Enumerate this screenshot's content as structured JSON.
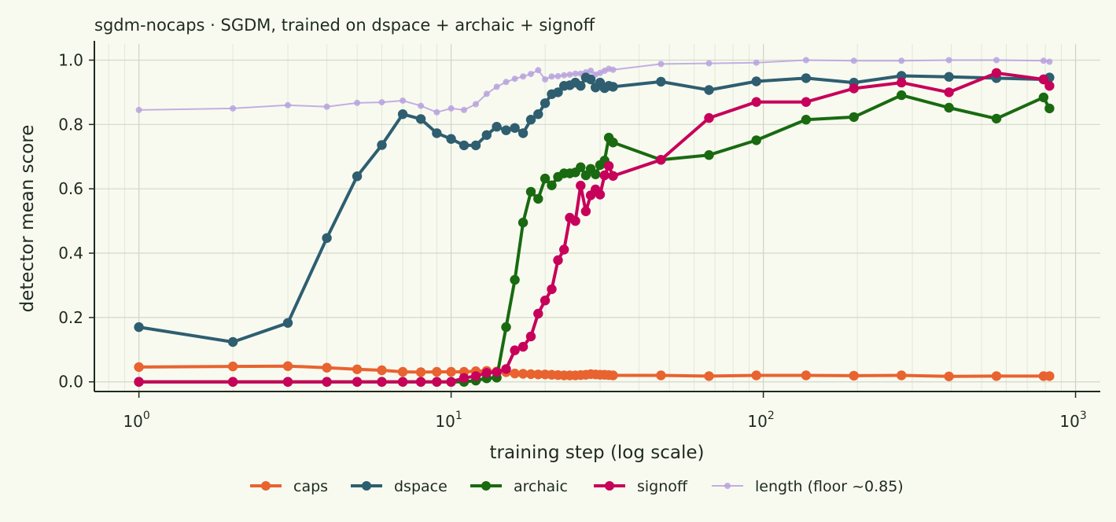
{
  "chart_data": {
    "type": "line",
    "title": "sgdm-nocaps · SGDM, trained on dspace + archaic + signoff",
    "xlabel": "training step (log scale)",
    "ylabel": "detector mean score",
    "x_scale": "log",
    "xlim": [
      0.72,
      1200
    ],
    "ylim": [
      -0.03,
      1.05
    ],
    "x_ticks": [
      {
        "value": 1,
        "base": "10",
        "exp": "0"
      },
      {
        "value": 10,
        "base": "10",
        "exp": "1"
      },
      {
        "value": 100,
        "base": "10",
        "exp": "2"
      },
      {
        "value": 1000,
        "base": "10",
        "exp": "3"
      }
    ],
    "y_ticks": [
      {
        "value": 0.0,
        "label": "0.0"
      },
      {
        "value": 0.2,
        "label": "0.2"
      },
      {
        "value": 0.4,
        "label": "0.4"
      },
      {
        "value": 0.6,
        "label": "0.6"
      },
      {
        "value": 0.8,
        "label": "0.8"
      },
      {
        "value": 1.0,
        "label": "1.0"
      }
    ],
    "grid": true,
    "legend_position": "bottom",
    "series": [
      {
        "name": "caps",
        "color": "#e8632f",
        "style": "thick",
        "x": [
          1,
          2,
          3,
          4,
          5,
          6,
          7,
          8,
          9,
          10,
          11,
          12,
          13,
          14,
          15,
          16,
          17,
          18,
          19,
          20,
          21,
          22,
          23,
          24,
          25,
          26,
          27,
          28,
          29,
          30,
          31,
          32,
          33,
          47,
          67,
          95,
          137,
          195,
          277,
          393,
          558,
          790,
          825
        ],
        "y": [
          0.046,
          0.048,
          0.049,
          0.044,
          0.039,
          0.036,
          0.031,
          0.03,
          0.031,
          0.031,
          0.031,
          0.033,
          0.034,
          0.032,
          0.03,
          0.026,
          0.025,
          0.024,
          0.023,
          0.023,
          0.022,
          0.021,
          0.02,
          0.02,
          0.02,
          0.021,
          0.022,
          0.024,
          0.023,
          0.022,
          0.022,
          0.021,
          0.02,
          0.02,
          0.018,
          0.02,
          0.02,
          0.019,
          0.02,
          0.017,
          0.018,
          0.018,
          0.018
        ]
      },
      {
        "name": "dspace",
        "color": "#2e5e70",
        "style": "thick",
        "x": [
          1,
          2,
          3,
          4,
          5,
          6,
          7,
          8,
          9,
          10,
          11,
          12,
          13,
          14,
          15,
          16,
          17,
          18,
          19,
          20,
          21,
          22,
          23,
          24,
          25,
          26,
          27,
          28,
          29,
          30,
          31,
          32,
          33,
          47,
          67,
          95,
          137,
          195,
          277,
          393,
          558,
          790,
          825
        ],
        "y": [
          0.17,
          0.124,
          0.183,
          0.447,
          0.639,
          0.736,
          0.832,
          0.817,
          0.773,
          0.755,
          0.735,
          0.735,
          0.767,
          0.793,
          0.782,
          0.789,
          0.773,
          0.815,
          0.832,
          0.866,
          0.894,
          0.9,
          0.92,
          0.922,
          0.93,
          0.92,
          0.946,
          0.94,
          0.915,
          0.93,
          0.913,
          0.92,
          0.917,
          0.933,
          0.907,
          0.934,
          0.944,
          0.93,
          0.951,
          0.948,
          0.944,
          0.94,
          0.946
        ]
      },
      {
        "name": "archaic",
        "color": "#196a10",
        "style": "thick",
        "x": [
          1,
          2,
          3,
          4,
          5,
          6,
          7,
          8,
          9,
          10,
          11,
          12,
          13,
          14,
          15,
          16,
          17,
          18,
          19,
          20,
          21,
          22,
          23,
          24,
          25,
          26,
          27,
          28,
          29,
          30,
          31,
          32,
          33,
          47,
          67,
          95,
          137,
          195,
          277,
          393,
          558,
          790,
          825
        ],
        "y": [
          0.0,
          0.0,
          0.0,
          0.0,
          0.0,
          0.0,
          0.0,
          0.0,
          0.0,
          0.0,
          0.0,
          0.004,
          0.011,
          0.013,
          0.17,
          0.317,
          0.495,
          0.591,
          0.569,
          0.632,
          0.611,
          0.637,
          0.648,
          0.648,
          0.651,
          0.667,
          0.642,
          0.662,
          0.645,
          0.674,
          0.688,
          0.759,
          0.744,
          0.69,
          0.705,
          0.751,
          0.815,
          0.823,
          0.891,
          0.852,
          0.818,
          0.884,
          0.85
        ]
      },
      {
        "name": "signoff",
        "color": "#c7005a",
        "style": "thick",
        "x": [
          1,
          2,
          3,
          4,
          5,
          6,
          7,
          8,
          9,
          10,
          11,
          12,
          13,
          14,
          15,
          16,
          17,
          18,
          19,
          20,
          21,
          22,
          23,
          24,
          25,
          26,
          27,
          28,
          29,
          30,
          31,
          32,
          33,
          47,
          67,
          95,
          137,
          195,
          277,
          393,
          558,
          790,
          825
        ],
        "y": [
          0.0,
          0.0,
          0.0,
          0.0,
          0.0,
          0.0,
          0.0,
          0.0,
          0.0,
          0.0,
          0.012,
          0.018,
          0.028,
          0.03,
          0.04,
          0.098,
          0.109,
          0.141,
          0.212,
          0.253,
          0.288,
          0.378,
          0.411,
          0.51,
          0.5,
          0.61,
          0.53,
          0.58,
          0.598,
          0.582,
          0.642,
          0.671,
          0.64,
          0.69,
          0.82,
          0.87,
          0.87,
          0.912,
          0.93,
          0.9,
          0.96,
          0.94,
          0.92
        ]
      },
      {
        "name": "length (floor ~0.85)",
        "color": "#b9a2de",
        "style": "thin",
        "x": [
          1,
          2,
          3,
          4,
          5,
          6,
          7,
          8,
          9,
          10,
          11,
          12,
          13,
          14,
          15,
          16,
          17,
          18,
          19,
          20,
          21,
          22,
          23,
          24,
          25,
          26,
          27,
          28,
          29,
          30,
          31,
          32,
          33,
          47,
          67,
          95,
          137,
          195,
          277,
          393,
          558,
          790,
          825
        ],
        "y": [
          0.845,
          0.85,
          0.86,
          0.855,
          0.867,
          0.869,
          0.874,
          0.858,
          0.838,
          0.85,
          0.845,
          0.863,
          0.895,
          0.917,
          0.932,
          0.942,
          0.949,
          0.957,
          0.969,
          0.94,
          0.949,
          0.95,
          0.953,
          0.955,
          0.958,
          0.958,
          0.962,
          0.967,
          0.955,
          0.96,
          0.967,
          0.973,
          0.97,
          0.988,
          0.99,
          0.992,
          1.0,
          0.998,
          0.998,
          1.0,
          1.0,
          0.998,
          0.995
        ]
      }
    ]
  }
}
